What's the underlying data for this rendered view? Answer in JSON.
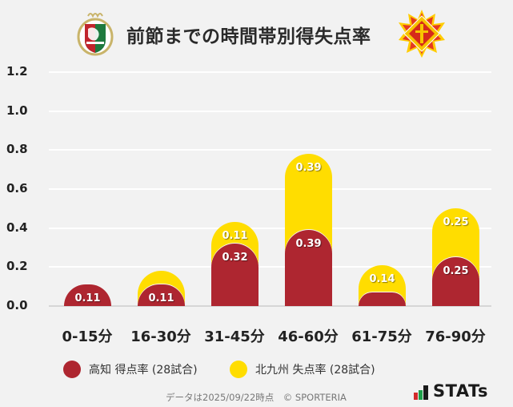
{
  "header": {
    "title": "前節までの時間帯別得失点率",
    "left_logo": "kochi-united-emblem",
    "right_logo": "giravanz-kitakyushu-emblem"
  },
  "colors": {
    "background": "#f2f2f2",
    "kochi_red": "#ae2630",
    "kitakyushu_yellow": "#ffdd00",
    "grid": "#ffffff",
    "baseline": "#d6d6d6"
  },
  "y_axis": {
    "ticks": [
      "1.2",
      "1.0",
      "0.8",
      "0.6",
      "0.4",
      "0.2",
      "0.0"
    ]
  },
  "x_axis": {
    "labels": [
      "0-15分",
      "16-30分",
      "31-45分",
      "46-60分",
      "61-75分",
      "76-90分"
    ]
  },
  "bars": [
    {
      "red": 0.11,
      "red_label": "0.11",
      "yellow": 0.0,
      "yellow_label": ""
    },
    {
      "red": 0.11,
      "red_label": "0.11",
      "yellow": 0.07,
      "yellow_label": ""
    },
    {
      "red": 0.32,
      "red_label": "0.32",
      "yellow": 0.11,
      "yellow_label": "0.11"
    },
    {
      "red": 0.39,
      "red_label": "0.39",
      "yellow": 0.39,
      "yellow_label": "0.39"
    },
    {
      "red": 0.07,
      "red_label": "",
      "yellow": 0.14,
      "yellow_label": "0.14"
    },
    {
      "red": 0.25,
      "red_label": "0.25",
      "yellow": 0.25,
      "yellow_label": "0.25"
    }
  ],
  "legend": {
    "items": [
      {
        "label": "高知 得点率 (28試合)",
        "color": "#ae2630"
      },
      {
        "label": "北九州 失点率 (28試合)",
        "color": "#ffdd00"
      }
    ]
  },
  "footer": {
    "note": "データは2025/09/22時点　© SPORTERIA",
    "brand": "STATs"
  },
  "chart_data": {
    "type": "bar",
    "stacked": true,
    "title": "前節までの時間帯別得失点率",
    "categories": [
      "0-15分",
      "16-30分",
      "31-45分",
      "46-60分",
      "61-75分",
      "76-90分"
    ],
    "series": [
      {
        "name": "高知 得点率 (28試合)",
        "color": "#ae2630",
        "values": [
          0.11,
          0.11,
          0.32,
          0.39,
          0.07,
          0.25
        ]
      },
      {
        "name": "北九州 失点率 (28試合)",
        "color": "#ffdd00",
        "values": [
          0.0,
          0.07,
          0.11,
          0.39,
          0.14,
          0.25
        ]
      }
    ],
    "xlabel": "",
    "ylabel": "",
    "ylim": [
      0,
      1.2
    ],
    "yticks": [
      0.0,
      0.2,
      0.4,
      0.6,
      0.8,
      1.0,
      1.2
    ],
    "grid": true,
    "legend_position": "bottom",
    "notes": "Values below ~0.1 are drawn but not labeled (16-30分 yellow, 61-75分 red)."
  }
}
